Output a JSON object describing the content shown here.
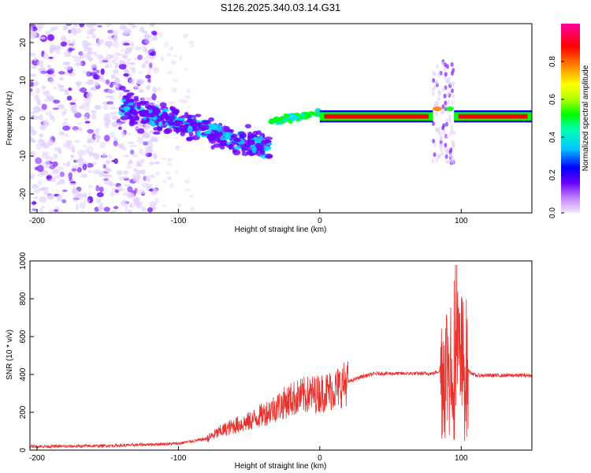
{
  "title": "S126.2025.340.03.14.G31",
  "chart_data": [
    {
      "type": "heatmap",
      "xlabel": "Height of straight line (km)",
      "ylabel": "Frequency (Hz)",
      "xlim": [
        -205,
        150
      ],
      "ylim": [
        -25,
        25
      ],
      "x_ticks": [
        "-200",
        "-100",
        "0",
        "100"
      ],
      "y_ticks": [
        "20",
        "10",
        "0",
        "-10",
        "-20"
      ],
      "colorbar": {
        "label": "Normalized spectral amplitude",
        "range": [
          0,
          1
        ],
        "ticks": [
          "0.0",
          "0.2",
          "0.4",
          "0.6",
          "0.8"
        ],
        "colors": [
          "#e0d0ff",
          "#6a00ff",
          "#0000ff",
          "#00e0ff",
          "#00ff00",
          "#ffff00",
          "#ff8000",
          "#ff0000",
          "#ff00a0"
        ]
      },
      "features": [
        {
          "x_range": [
            -205,
            -140
          ],
          "y_range": [
            -25,
            25
          ],
          "amplitude": 0.15,
          "note_type": "scattered noise"
        },
        {
          "x_range": [
            -140,
            -35
          ],
          "y_center_start": 3,
          "y_center_end": -8,
          "amplitude": 0.35
        },
        {
          "x_range": [
            -35,
            0
          ],
          "y_center_start": -1,
          "y_center_end": 1.5,
          "amplitude": 0.5
        },
        {
          "x_range": [
            0,
            80
          ],
          "y_center": 0.5,
          "amplitude": 0.9
        },
        {
          "x_range": [
            80,
            95
          ],
          "y_range": [
            -12,
            15
          ],
          "amplitude": 0.4
        },
        {
          "x_range": [
            95,
            150
          ],
          "y_center": 0.5,
          "amplitude": 0.85
        }
      ]
    },
    {
      "type": "line",
      "xlabel": "Height of straight line (km)",
      "ylabel": "SNR (10 * v/v)",
      "xlim": [
        -205,
        150
      ],
      "ylim": [
        0,
        1000
      ],
      "x_ticks": [
        "-200",
        "-100",
        "0",
        "100"
      ],
      "y_ticks": [
        "0",
        "200",
        "400",
        "600",
        "800",
        "1000"
      ],
      "series": [
        {
          "color": "#e8322e",
          "x": [
            -205,
            -180,
            -160,
            -140,
            -120,
            -100,
            -80,
            -70,
            -60,
            -50,
            -40,
            -30,
            -20,
            -10,
            0,
            10,
            20,
            30,
            40,
            60,
            80,
            85,
            90,
            95,
            100,
            105,
            110,
            120,
            130,
            140,
            150
          ],
          "y": [
            20,
            20,
            22,
            25,
            30,
            35,
            60,
            100,
            130,
            150,
            190,
            230,
            270,
            290,
            300,
            320,
            360,
            390,
            405,
            405,
            405,
            420,
            450,
            500,
            450,
            420,
            395,
            395,
            395,
            395,
            395
          ]
        }
      ]
    }
  ]
}
